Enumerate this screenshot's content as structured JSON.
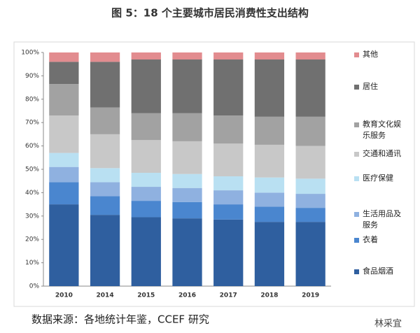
{
  "chart_data": {
    "type": "stacked_bar_percent",
    "title": "图 5：18 个主要城市居民消费性支出结构",
    "source": "数据来源：各地统计年鉴，CCEF 研究",
    "watermark": "林采宜",
    "categories": [
      "2010",
      "2014",
      "2015",
      "2016",
      "2017",
      "2018",
      "2019"
    ],
    "series": [
      {
        "name": "食品烟酒",
        "color": "#2f5f9f",
        "values": [
          35,
          30.5,
          29.5,
          29,
          28.5,
          27.5,
          27.5
        ]
      },
      {
        "name": "衣着",
        "color": "#4a86cf",
        "values": [
          9.5,
          8,
          7,
          7,
          6.5,
          6.5,
          6
        ]
      },
      {
        "name": "生活用品及服务",
        "color": "#8fb1e0",
        "values": [
          6.5,
          6,
          6,
          6,
          6,
          6,
          6
        ]
      },
      {
        "name": "医疗保健",
        "color": "#b9e0f2",
        "values": [
          6,
          6,
          6,
          6,
          6,
          6.5,
          6.5
        ]
      },
      {
        "name": "交通和通讯",
        "color": "#c8c8c8",
        "values": [
          16,
          14.5,
          14,
          14,
          14,
          14,
          14
        ]
      },
      {
        "name": "教育文化娱乐服务",
        "color": "#a2a2a2",
        "values": [
          13.5,
          11.5,
          11.5,
          12,
          12,
          12,
          12.5
        ]
      },
      {
        "name": "居住",
        "color": "#707070",
        "values": [
          9.5,
          19.5,
          23,
          23,
          24,
          24.5,
          24.5
        ]
      },
      {
        "name": "其他",
        "color": "#e28c8f",
        "values": [
          4,
          4,
          3,
          3,
          3,
          3,
          3
        ]
      }
    ],
    "ylim": [
      0,
      100
    ],
    "yticks": [
      {
        "value": 0,
        "label": "0%"
      },
      {
        "value": 10,
        "label": "10%"
      },
      {
        "value": 20,
        "label": "20%"
      },
      {
        "value": 30,
        "label": "30%"
      },
      {
        "value": 40,
        "label": "40%"
      },
      {
        "value": 50,
        "label": "50%"
      },
      {
        "value": 60,
        "label": "60%"
      },
      {
        "value": 70,
        "label": "70%"
      },
      {
        "value": 80,
        "label": "80%"
      },
      {
        "value": 90,
        "label": "90%"
      },
      {
        "value": 100,
        "label": "100%"
      }
    ],
    "grid": false,
    "legend": "right"
  }
}
